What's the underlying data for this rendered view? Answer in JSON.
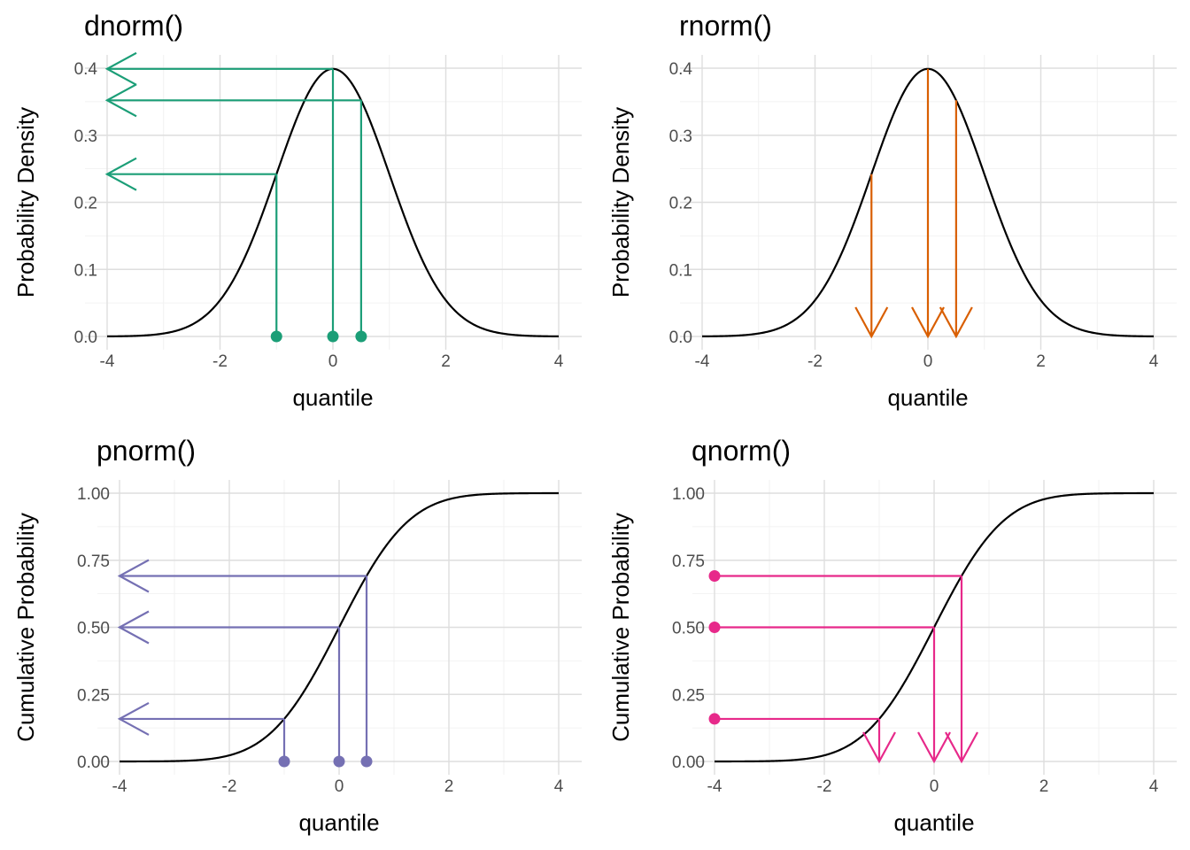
{
  "chart_data": [
    {
      "id": "dnorm",
      "type": "line",
      "title": "dnorm()",
      "xlabel": "quantile",
      "ylabel": "Probability Density",
      "function": "pdf",
      "xlim": [
        -4,
        4
      ],
      "ylim": [
        0,
        0.4
      ],
      "x_ticks": [
        -4,
        -2,
        0,
        2,
        4
      ],
      "x_tick_labels": [
        "-4",
        "-2",
        "0",
        "2",
        "4"
      ],
      "y_ticks": [
        0,
        0.1,
        0.2,
        0.3,
        0.4
      ],
      "y_tick_labels": [
        "0.0",
        "0.1",
        "0.2",
        "0.3",
        "0.4"
      ],
      "grid": true,
      "accent_color": "#1b9e77",
      "highlight_x": [
        -1,
        0,
        0.5
      ],
      "highlight_y": [
        0.242,
        0.399,
        0.352
      ],
      "annotation": "points at quantiles with arrows pointing to density on y-axis"
    },
    {
      "id": "rnorm",
      "type": "line",
      "title": "rnorm()",
      "xlabel": "quantile",
      "ylabel": "Probability Density",
      "function": "pdf",
      "xlim": [
        -4,
        4
      ],
      "ylim": [
        0,
        0.4
      ],
      "x_ticks": [
        -4,
        -2,
        0,
        2,
        4
      ],
      "x_tick_labels": [
        "-4",
        "-2",
        "0",
        "2",
        "4"
      ],
      "y_ticks": [
        0,
        0.1,
        0.2,
        0.3,
        0.4
      ],
      "y_tick_labels": [
        "0.0",
        "0.1",
        "0.2",
        "0.3",
        "0.4"
      ],
      "grid": true,
      "accent_color": "#d95f02",
      "highlight_x": [
        -1,
        0,
        0.5
      ],
      "highlight_y": [
        0.242,
        0.399,
        0.352
      ],
      "annotation": "arrows dropping from curve down to sampled quantiles"
    },
    {
      "id": "pnorm",
      "type": "line",
      "title": "pnorm()",
      "xlabel": "quantile",
      "ylabel": "Cumulative Probability",
      "function": "cdf",
      "xlim": [
        -4,
        4
      ],
      "ylim": [
        0,
        1
      ],
      "x_ticks": [
        -4,
        -2,
        0,
        2,
        4
      ],
      "x_tick_labels": [
        "-4",
        "-2",
        "0",
        "2",
        "4"
      ],
      "y_ticks": [
        0,
        0.25,
        0.5,
        0.75,
        1
      ],
      "y_tick_labels": [
        "0.00",
        "0.25",
        "0.50",
        "0.75",
        "1.00"
      ],
      "grid": true,
      "accent_color": "#7570b3",
      "highlight_x": [
        -1,
        0,
        0.5
      ],
      "highlight_y": [
        0.159,
        0.5,
        0.691
      ],
      "annotation": "points at quantiles with arrows pointing to cumulative probability"
    },
    {
      "id": "qnorm",
      "type": "line",
      "title": "qnorm()",
      "xlabel": "quantile",
      "ylabel": "Cumulative Probability",
      "function": "cdf",
      "xlim": [
        -4,
        4
      ],
      "ylim": [
        0,
        1
      ],
      "x_ticks": [
        -4,
        -2,
        0,
        2,
        4
      ],
      "x_tick_labels": [
        "-4",
        "-2",
        "0",
        "2",
        "4"
      ],
      "y_ticks": [
        0,
        0.25,
        0.5,
        0.75,
        1
      ],
      "y_tick_labels": [
        "0.00",
        "0.25",
        "0.50",
        "0.75",
        "1.00"
      ],
      "grid": true,
      "accent_color": "#e7298a",
      "highlight_x": [
        -1,
        0,
        0.5
      ],
      "highlight_y": [
        0.159,
        0.5,
        0.691
      ],
      "annotation": "points at probabilities with arrows down to quantiles"
    }
  ]
}
